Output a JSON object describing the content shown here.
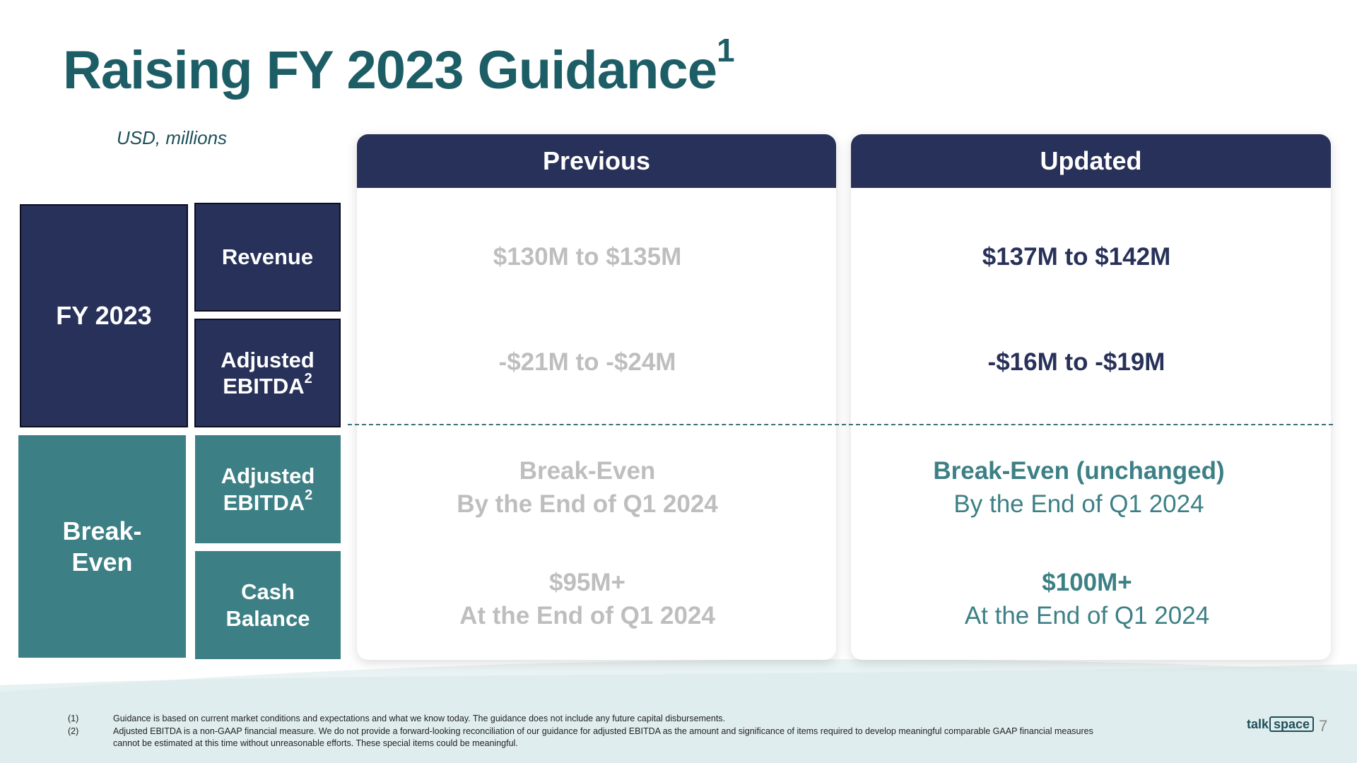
{
  "slide": {
    "title": "Raising FY 2023 Guidance",
    "title_footnote": "1",
    "units": "USD, millions",
    "page_number": "7"
  },
  "left_labels": {
    "fy2023": "FY 2023",
    "revenue": "Revenue",
    "adj_ebitda_line1": "Adjusted",
    "adj_ebitda_line2": "EBITDA",
    "adj_ebitda_sup": "2",
    "break_even_line1": "Break-",
    "break_even_line2": "Even",
    "cash_line1": "Cash",
    "cash_line2": "Balance"
  },
  "columns": {
    "previous": {
      "header": "Previous",
      "revenue": "$130M to $135M",
      "adj_ebitda": "-$21M to -$24M",
      "be_ebitda_main": "Break-Even",
      "be_ebitda_sub": "By the End of Q1 2024",
      "cash_main": "$95M+",
      "cash_sub": "At the End of Q1 2024"
    },
    "updated": {
      "header": "Updated",
      "revenue": "$137M to $142M",
      "adj_ebitda": "-$16M to -$19M",
      "be_ebitda_main": "Break-Even (unchanged)",
      "be_ebitda_sub": "By the End of Q1 2024",
      "cash_main": "$100M+",
      "cash_sub": "At the End of Q1 2024"
    }
  },
  "footnotes": [
    {
      "num": "(1)",
      "text": "Guidance is based on current market conditions and expectations and what we know today. The guidance does not include any future capital disbursements."
    },
    {
      "num": "(2)",
      "text": "Adjusted EBITDA is a non-GAAP financial measure. We do not provide a forward-looking reconciliation of our guidance for adjusted EBITDA as the amount and significance of items required to develop meaningful comparable GAAP financial measures cannot be estimated at this time without unreasonable efforts. These special items could be meaningful."
    }
  ],
  "logo": {
    "part1": "talk",
    "part2": "space"
  },
  "colors": {
    "navy": "#283159",
    "teal": "#3c8085",
    "title": "#1d5e66",
    "muted": "#bebebe"
  }
}
